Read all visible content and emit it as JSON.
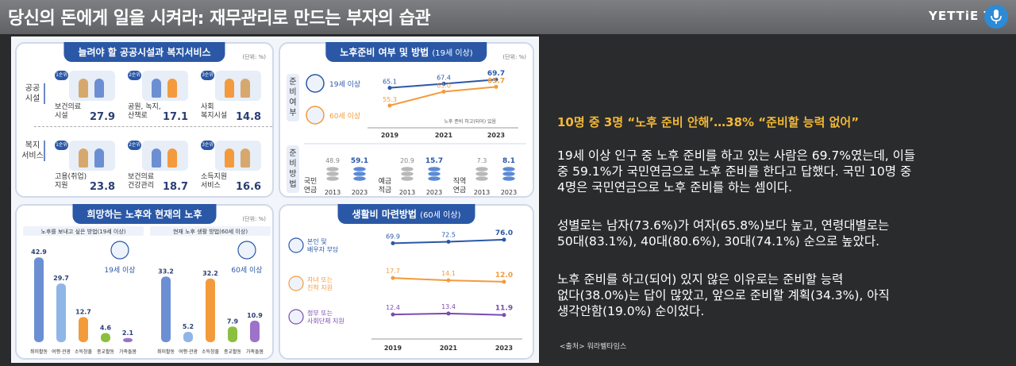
{
  "header": {
    "title": "당신의 돈에게 일을 시켜라: 재무관리로 만드는 부자의 습관",
    "logo": "YETTiE TV",
    "mic_icon": "microphone-icon"
  },
  "colors": {
    "accent": "#2a58a6",
    "headline": "#f2b936",
    "orange": "#f39b3c",
    "purple": "#7b4bb0",
    "green": "#8bbf3f",
    "blue": "#6c8fd4"
  },
  "infographic": {
    "facilities": {
      "title": "늘려야 할 공공시설과 복지서비스",
      "unit": "(단위: %)",
      "rows": [
        {
          "label": "공공\n시설",
          "items": [
            {
              "rank": "1순위",
              "label": "보건의료\n시설",
              "value": "27.9"
            },
            {
              "rank": "2순위",
              "label": "공원, 녹지,\n산책로",
              "value": "17.1"
            },
            {
              "rank": "3순위",
              "label": "사회\n복지시설",
              "value": "14.8"
            }
          ]
        },
        {
          "label": "복지\n서비스",
          "items": [
            {
              "rank": "1순위",
              "label": "고용(취업)\n지원",
              "value": "23.8"
            },
            {
              "rank": "2순위",
              "label": "보건의료\n건강관리",
              "value": "18.7"
            },
            {
              "rank": "3순위",
              "label": "소득지원\n서비스",
              "value": "16.6"
            }
          ]
        }
      ]
    },
    "retirement_prep": {
      "title": "노후준비 여부 및 방법",
      "title_sub": "(19세 이상)",
      "unit": "(단위: %)",
      "section1_label": "준비여부",
      "section2_label": "준비방법",
      "note": "노후 준비 하고(되어) 있음",
      "years": [
        "2019",
        "2021",
        "2023"
      ],
      "lines": [
        {
          "name": "19세 이상",
          "values": [
            65.1,
            67.4,
            69.7
          ],
          "labels": [
            "65.1",
            "67.4",
            "69.7"
          ],
          "color": "#2a58a6"
        },
        {
          "name": "60세 이상",
          "values": [
            55.3,
            63.0,
            65.7
          ],
          "labels": [
            "55.3",
            "63.0",
            "65.7"
          ],
          "color": "#f39b3c"
        }
      ],
      "methods": [
        {
          "name": "국민\n연금",
          "years": [
            "2013",
            "2023"
          ],
          "values": [
            "48.9",
            "59.1"
          ]
        },
        {
          "name": "예금\n적금",
          "years": [
            "2013",
            "2023"
          ],
          "values": [
            "20.9",
            "15.7"
          ]
        },
        {
          "name": "직역\n연금",
          "years": [
            "2013",
            "2023"
          ],
          "values": [
            "7.3",
            "8.1"
          ]
        }
      ]
    },
    "hope": {
      "title": "희망하는 노후와 현재의 노후",
      "unit": "(단위: %)",
      "groups": [
        {
          "header": "노후를 보내고 싶은 방법(19세 이상)",
          "age": "19세 이상",
          "categories": [
            "취미활동",
            "여행·관광",
            "소득창출",
            "종교활동",
            "가족돌봄"
          ],
          "values": [
            42.9,
            29.7,
            12.7,
            4.6,
            2.1
          ],
          "labels": [
            "42.9",
            "29.7",
            "12.7",
            "4.6",
            "2.1"
          ]
        },
        {
          "header": "현재 노후 생활 방법(60세 이상)",
          "age": "60세 이상",
          "categories": [
            "취미활동",
            "여행·관광",
            "소득창출",
            "종교활동",
            "가족돌봄"
          ],
          "values": [
            33.2,
            5.2,
            32.2,
            7.9,
            10.9
          ],
          "labels": [
            "33.2",
            "5.2",
            "32.2",
            "7.9",
            "10.9"
          ]
        }
      ],
      "bar_colors": [
        "#6c8fd4",
        "#8fb6e6",
        "#f39b3c",
        "#8bbf3f",
        "#9d72c9"
      ]
    },
    "living": {
      "title": "생활비 마련방법",
      "title_sub": "(60세 이상)",
      "years": [
        "2019",
        "2021",
        "2023"
      ],
      "lines": [
        {
          "name": "본인 및\n배우자 부담",
          "values": [
            69.9,
            72.5,
            76.0
          ],
          "labels": [
            "69.9",
            "72.5",
            "76.0"
          ],
          "color": "#2a58a6"
        },
        {
          "name": "자녀 또는\n친척 지원",
          "values": [
            17.7,
            14.1,
            12.0
          ],
          "labels": [
            "17.7",
            "14.1",
            "12.0"
          ],
          "color": "#f39b3c"
        },
        {
          "name": "정부 또는\n사회단체 지원",
          "values": [
            12.4,
            13.4,
            11.9
          ],
          "labels": [
            "12.4",
            "13.4",
            "11.9"
          ],
          "color": "#7b4bb0"
        }
      ]
    }
  },
  "article": {
    "headline": "10명 중 3명 “노후 준비 안해’…38% “준비할 능력 없어”",
    "p1": "19세 이상 인구 중 노후 준비를 하고 있는 사람은 69.7%였는데, 이들\n중 59.1%가 국민연금으로 노후 준비를 한다고 답했다. 국민 10명 중\n4명은 국민연금으로 노후 준비를 하는 셈이다.",
    "p2": "성별로는 남자(73.6%)가 여자(65.8%)보다 높고, 연령대별로는\n50대(83.1%), 40대(80.6%), 30대(74.1%) 순으로 높았다.",
    "p3": "노후 준비를 하고(되어) 있지 않은 이유로는 준비할 능력\n없다(38.0%)는 답이 많았고, 앞으로 준비할 계획(34.3%), 아직\n생각안함(19.0%) 순이었다.",
    "source": "<출처> 워라벨타임스"
  }
}
